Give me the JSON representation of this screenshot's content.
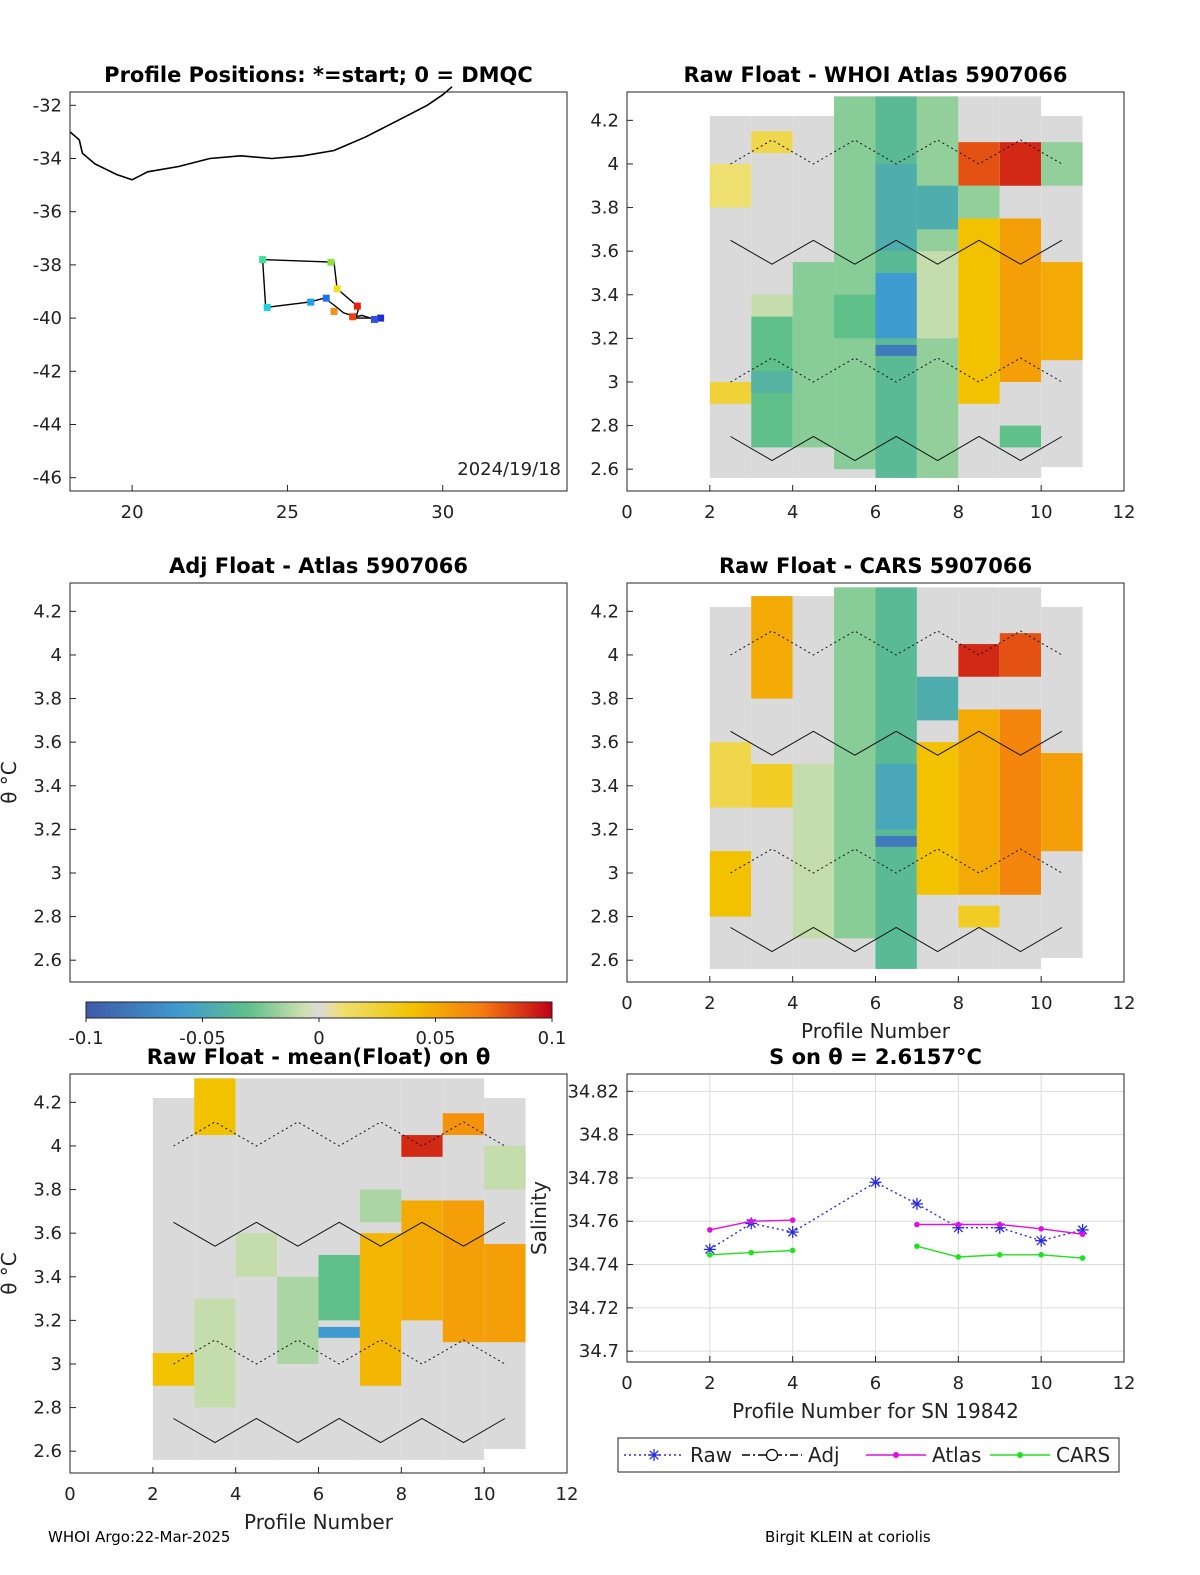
{
  "footer": {
    "left": "WHOI Argo:22-Mar-2025",
    "right": "Birgit KLEIN at coriolis"
  },
  "colorbar": {
    "range": [
      -0.1,
      0.1
    ],
    "ticks": [
      "-0.1",
      "-0.05",
      "0",
      "0.05",
      "0.1"
    ]
  },
  "chart_data": [
    {
      "id": "positions",
      "type": "map",
      "title": "Profile Positions: *=start; 0 = DMQC",
      "xlim": [
        18,
        34
      ],
      "ylim": [
        -46.5,
        -31.5
      ],
      "xticks": [
        20,
        25,
        30
      ],
      "yticks": [
        -32,
        -34,
        -36,
        -38,
        -40,
        -42,
        -44,
        -46
      ],
      "annotation": "2024/19/18",
      "coastline": [
        [
          18,
          -33.0
        ],
        [
          18.3,
          -33.3
        ],
        [
          18.4,
          -33.8
        ],
        [
          18.8,
          -34.2
        ],
        [
          19.5,
          -34.6
        ],
        [
          20.0,
          -34.8
        ],
        [
          20.5,
          -34.5
        ],
        [
          21.5,
          -34.3
        ],
        [
          22.5,
          -34.0
        ],
        [
          23.5,
          -33.9
        ],
        [
          24.5,
          -34.0
        ],
        [
          25.5,
          -33.9
        ],
        [
          26.5,
          -33.7
        ],
        [
          27.5,
          -33.2
        ],
        [
          28.5,
          -32.6
        ],
        [
          29.5,
          -32.0
        ],
        [
          30.0,
          -31.6
        ],
        [
          30.3,
          -31.3
        ]
      ],
      "track": [
        [
          28.0,
          -40.0
        ],
        [
          27.8,
          -40.05
        ],
        [
          27.4,
          -39.9
        ],
        [
          27.2,
          -39.95
        ],
        [
          26.8,
          -39.8
        ],
        [
          26.6,
          -39.6
        ],
        [
          26.2,
          -39.25
        ],
        [
          25.7,
          -39.4
        ],
        [
          24.3,
          -39.6
        ],
        [
          24.2,
          -37.8
        ],
        [
          26.5,
          -37.9
        ],
        [
          26.6,
          -38.9
        ],
        [
          27.3,
          -39.6
        ],
        [
          27.2,
          -40.0
        ],
        [
          27.8,
          -40.0
        ]
      ],
      "points": [
        {
          "lon": 28.0,
          "lat": -40.0,
          "color": "#2030d0"
        },
        {
          "lon": 27.8,
          "lat": -40.05,
          "color": "#3050e0"
        },
        {
          "lon": 24.2,
          "lat": -37.8,
          "color": "#40e0a0"
        },
        {
          "lon": 26.4,
          "lat": -37.9,
          "color": "#90e040"
        },
        {
          "lon": 26.6,
          "lat": -38.9,
          "color": "#f0e020"
        },
        {
          "lon": 24.35,
          "lat": -39.6,
          "color": "#20d0e0"
        },
        {
          "lon": 25.75,
          "lat": -39.4,
          "color": "#20a0f0"
        },
        {
          "lon": 26.25,
          "lat": -39.25,
          "color": "#2070f0"
        },
        {
          "lon": 26.5,
          "lat": -39.75,
          "color": "#f09020"
        },
        {
          "lon": 27.25,
          "lat": -39.55,
          "color": "#e02010"
        },
        {
          "lon": 27.1,
          "lat": -39.95,
          "color": "#f04010"
        }
      ]
    },
    {
      "id": "atlas",
      "type": "heatmap",
      "title": "Raw Float - WHOI Atlas  5907066",
      "xlim": [
        0,
        12
      ],
      "ylim": [
        2.5,
        4.33
      ],
      "xticks": [
        0,
        2,
        4,
        6,
        8,
        10,
        12
      ],
      "yticks": [
        2.6,
        2.8,
        3,
        3.2,
        3.4,
        3.6,
        3.8,
        4,
        4.2
      ],
      "columns": [
        {
          "x": 2.5,
          "bottom": 2.56,
          "top": 4.22,
          "cells": [
            {
              "from": 2.9,
              "to": 3.0,
              "v": 0.025
            },
            {
              "from": 3.8,
              "to": 4.0,
              "v": 0.01
            }
          ]
        },
        {
          "x": 3.5,
          "bottom": 2.56,
          "top": 4.22,
          "cells": [
            {
              "from": 2.7,
              "to": 3.3,
              "v": -0.03
            },
            {
              "from": 2.95,
              "to": 3.05,
              "v": -0.04
            },
            {
              "from": 3.3,
              "to": 3.4,
              "v": -0.01
            },
            {
              "from": 4.05,
              "to": 4.15,
              "v": 0.02
            }
          ]
        },
        {
          "x": 4.5,
          "bottom": 2.56,
          "top": 4.22,
          "cells": [
            {
              "from": 2.7,
              "to": 3.55,
              "v": -0.022
            }
          ]
        },
        {
          "x": 5.5,
          "bottom": 2.56,
          "top": 4.31,
          "cells": [
            {
              "from": 2.6,
              "to": 4.31,
              "v": -0.022
            },
            {
              "from": 3.2,
              "to": 3.4,
              "v": -0.03
            }
          ]
        },
        {
          "x": 6.5,
          "bottom": 2.56,
          "top": 4.31,
          "cells": [
            {
              "from": 2.56,
              "to": 4.31,
              "v": -0.035
            },
            {
              "from": 3.6,
              "to": 4.0,
              "v": -0.045
            },
            {
              "from": 3.2,
              "to": 3.5,
              "v": -0.06
            },
            {
              "from": 3.12,
              "to": 3.17,
              "v": -0.08
            }
          ]
        },
        {
          "x": 7.5,
          "bottom": 2.56,
          "top": 4.31,
          "cells": [
            {
              "from": 2.56,
              "to": 4.31,
              "v": -0.02
            },
            {
              "from": 3.7,
              "to": 3.9,
              "v": -0.045
            },
            {
              "from": 3.2,
              "to": 3.6,
              "v": -0.01
            }
          ]
        },
        {
          "x": 8.5,
          "bottom": 2.56,
          "top": 4.31,
          "cells": [
            {
              "from": 2.9,
              "to": 3.75,
              "v": 0.04
            },
            {
              "from": 3.9,
              "to": 4.1,
              "v": 0.08
            },
            {
              "from": 3.75,
              "to": 3.9,
              "v": -0.02
            }
          ]
        },
        {
          "x": 9.5,
          "bottom": 2.56,
          "top": 4.31,
          "cells": [
            {
              "from": 3.0,
              "to": 3.75,
              "v": 0.055
            },
            {
              "from": 3.9,
              "to": 4.1,
              "v": 0.09
            },
            {
              "from": 2.7,
              "to": 2.8,
              "v": -0.03
            }
          ]
        },
        {
          "x": 10.5,
          "bottom": 2.61,
          "top": 4.22,
          "cells": [
            {
              "from": 3.1,
              "to": 3.55,
              "v": 0.05
            },
            {
              "from": 3.9,
              "to": 4.1,
              "v": -0.02
            }
          ]
        }
      ]
    },
    {
      "id": "adj",
      "type": "heatmap",
      "title": "Adj Float - Atlas  5907066",
      "ylabel": "θ °C",
      "xlim": [
        0,
        12
      ],
      "ylim": [
        2.5,
        4.33
      ],
      "yticks": [
        2.6,
        2.8,
        3,
        3.2,
        3.4,
        3.6,
        3.8,
        4,
        4.2
      ],
      "columns": []
    },
    {
      "id": "cars",
      "type": "heatmap",
      "title": "Raw Float - CARS  5907066",
      "xlabel": "Profile Number",
      "xlim": [
        0,
        12
      ],
      "ylim": [
        2.5,
        4.33
      ],
      "xticks": [
        0,
        2,
        4,
        6,
        8,
        10,
        12
      ],
      "yticks": [
        2.6,
        2.8,
        3,
        3.2,
        3.4,
        3.6,
        3.8,
        4,
        4.2
      ],
      "columns": [
        {
          "x": 2.5,
          "bottom": 2.56,
          "top": 4.22,
          "cells": [
            {
              "from": 2.8,
              "to": 3.1,
              "v": 0.04
            },
            {
              "from": 3.3,
              "to": 3.6,
              "v": 0.02
            }
          ]
        },
        {
          "x": 3.5,
          "bottom": 2.56,
          "top": 4.27,
          "cells": [
            {
              "from": 3.8,
              "to": 4.27,
              "v": 0.05
            },
            {
              "from": 3.3,
              "to": 3.5,
              "v": 0.03
            }
          ]
        },
        {
          "x": 4.5,
          "bottom": 2.56,
          "top": 4.27,
          "cells": [
            {
              "from": 2.7,
              "to": 3.5,
              "v": -0.01
            }
          ]
        },
        {
          "x": 5.5,
          "bottom": 2.56,
          "top": 4.31,
          "cells": [
            {
              "from": 2.7,
              "to": 4.31,
              "v": -0.022
            }
          ]
        },
        {
          "x": 6.5,
          "bottom": 2.56,
          "top": 4.31,
          "cells": [
            {
              "from": 2.56,
              "to": 4.31,
              "v": -0.035
            },
            {
              "from": 3.2,
              "to": 3.5,
              "v": -0.05
            },
            {
              "from": 3.12,
              "to": 3.17,
              "v": -0.08
            }
          ]
        },
        {
          "x": 7.5,
          "bottom": 2.56,
          "top": 4.31,
          "cells": [
            {
              "from": 2.9,
              "to": 3.6,
              "v": 0.04
            },
            {
              "from": 3.7,
              "to": 3.9,
              "v": -0.045
            }
          ]
        },
        {
          "x": 8.5,
          "bottom": 2.56,
          "top": 4.31,
          "cells": [
            {
              "from": 2.9,
              "to": 3.75,
              "v": 0.05
            },
            {
              "from": 3.9,
              "to": 4.05,
              "v": 0.09
            },
            {
              "from": 2.75,
              "to": 2.85,
              "v": 0.03
            }
          ]
        },
        {
          "x": 9.5,
          "bottom": 2.56,
          "top": 4.31,
          "cells": [
            {
              "from": 2.9,
              "to": 3.75,
              "v": 0.065
            },
            {
              "from": 3.9,
              "to": 4.1,
              "v": 0.08
            }
          ]
        },
        {
          "x": 10.5,
          "bottom": 2.61,
          "top": 4.22,
          "cells": [
            {
              "from": 3.1,
              "to": 3.55,
              "v": 0.055
            }
          ]
        }
      ]
    },
    {
      "id": "anom",
      "type": "heatmap",
      "title": "Raw Float - mean(Float) on θ",
      "ylabel": "θ °C",
      "xlabel": "Profile Number",
      "xlim": [
        0,
        12
      ],
      "ylim": [
        2.5,
        4.33
      ],
      "xticks": [
        0,
        2,
        4,
        6,
        8,
        10,
        12
      ],
      "yticks": [
        2.6,
        2.8,
        3,
        3.2,
        3.4,
        3.6,
        3.8,
        4,
        4.2
      ],
      "columns": [
        {
          "x": 2.5,
          "bottom": 2.56,
          "top": 4.22,
          "cells": [
            {
              "from": 2.9,
              "to": 3.05,
              "v": 0.04
            }
          ]
        },
        {
          "x": 3.5,
          "bottom": 2.56,
          "top": 4.31,
          "cells": [
            {
              "from": 4.05,
              "to": 4.31,
              "v": 0.04
            },
            {
              "from": 2.8,
              "to": 3.3,
              "v": -0.01
            }
          ]
        },
        {
          "x": 4.5,
          "bottom": 2.56,
          "top": 4.31,
          "cells": [
            {
              "from": 3.4,
              "to": 3.6,
              "v": -0.01
            }
          ]
        },
        {
          "x": 5.5,
          "bottom": 2.56,
          "top": 4.31,
          "cells": [
            {
              "from": 3.0,
              "to": 3.4,
              "v": -0.015
            }
          ]
        },
        {
          "x": 6.5,
          "bottom": 2.56,
          "top": 4.31,
          "cells": [
            {
              "from": 3.2,
              "to": 3.5,
              "v": -0.03
            },
            {
              "from": 3.12,
              "to": 3.17,
              "v": -0.06
            }
          ]
        },
        {
          "x": 7.5,
          "bottom": 2.56,
          "top": 4.31,
          "cells": [
            {
              "from": 2.9,
              "to": 3.6,
              "v": 0.045
            },
            {
              "from": 3.65,
              "to": 3.8,
              "v": -0.015
            }
          ]
        },
        {
          "x": 8.5,
          "bottom": 2.56,
          "top": 4.31,
          "cells": [
            {
              "from": 3.2,
              "to": 3.75,
              "v": 0.05
            },
            {
              "from": 3.95,
              "to": 4.05,
              "v": 0.09
            }
          ]
        },
        {
          "x": 9.5,
          "bottom": 2.56,
          "top": 4.31,
          "cells": [
            {
              "from": 3.1,
              "to": 3.75,
              "v": 0.055
            },
            {
              "from": 4.05,
              "to": 4.15,
              "v": 0.06
            }
          ]
        },
        {
          "x": 10.5,
          "bottom": 2.61,
          "top": 4.22,
          "cells": [
            {
              "from": 3.1,
              "to": 3.55,
              "v": 0.055
            },
            {
              "from": 3.8,
              "to": 4.0,
              "v": -0.01
            }
          ]
        }
      ]
    },
    {
      "id": "salinity",
      "type": "line",
      "title": "S on θ = 2.6157°C",
      "xlabel": "Profile Number for SN 19842",
      "ylabel": "Salinity",
      "xlim": [
        0,
        12
      ],
      "ylim": [
        34.695,
        34.828
      ],
      "xticks": [
        0,
        2,
        4,
        6,
        8,
        10,
        12
      ],
      "yticks": [
        34.7,
        34.72,
        34.74,
        34.76,
        34.78,
        34.8,
        34.82
      ],
      "grid": true,
      "legend": "bottom-outside",
      "series": [
        {
          "name": "Raw",
          "color": "#2a2ae0",
          "style": "dotted",
          "marker": "asterisk",
          "points": [
            [
              2,
              34.747
            ],
            [
              3,
              34.759
            ],
            [
              4,
              34.755
            ],
            [
              6,
              34.778
            ],
            [
              7,
              34.768
            ],
            [
              8,
              34.757
            ],
            [
              9,
              34.757
            ],
            [
              10,
              34.751
            ],
            [
              11,
              34.756
            ]
          ]
        },
        {
          "name": "Adj",
          "color": "#000000",
          "style": "dashdot",
          "marker": "circle",
          "points": []
        },
        {
          "name": "Atlas",
          "color": "#e010e0",
          "style": "solid",
          "marker": "dot",
          "segments": [
            [
              [
                2,
                34.756
              ],
              [
                3,
                34.76
              ],
              [
                4,
                34.7605
              ]
            ],
            [
              [
                7,
                34.7585
              ],
              [
                8,
                34.7585
              ],
              [
                9,
                34.7585
              ],
              [
                10,
                34.7565
              ],
              [
                11,
                34.754
              ]
            ]
          ]
        },
        {
          "name": "CARS",
          "color": "#20e020",
          "style": "solid",
          "marker": "dot",
          "segments": [
            [
              [
                2,
                34.7445
              ],
              [
                3,
                34.7455
              ],
              [
                4,
                34.7465
              ]
            ],
            [
              [
                7,
                34.7485
              ],
              [
                8,
                34.7435
              ],
              [
                9,
                34.7445
              ],
              [
                10,
                34.7445
              ],
              [
                11,
                34.743
              ]
            ]
          ]
        }
      ]
    }
  ]
}
